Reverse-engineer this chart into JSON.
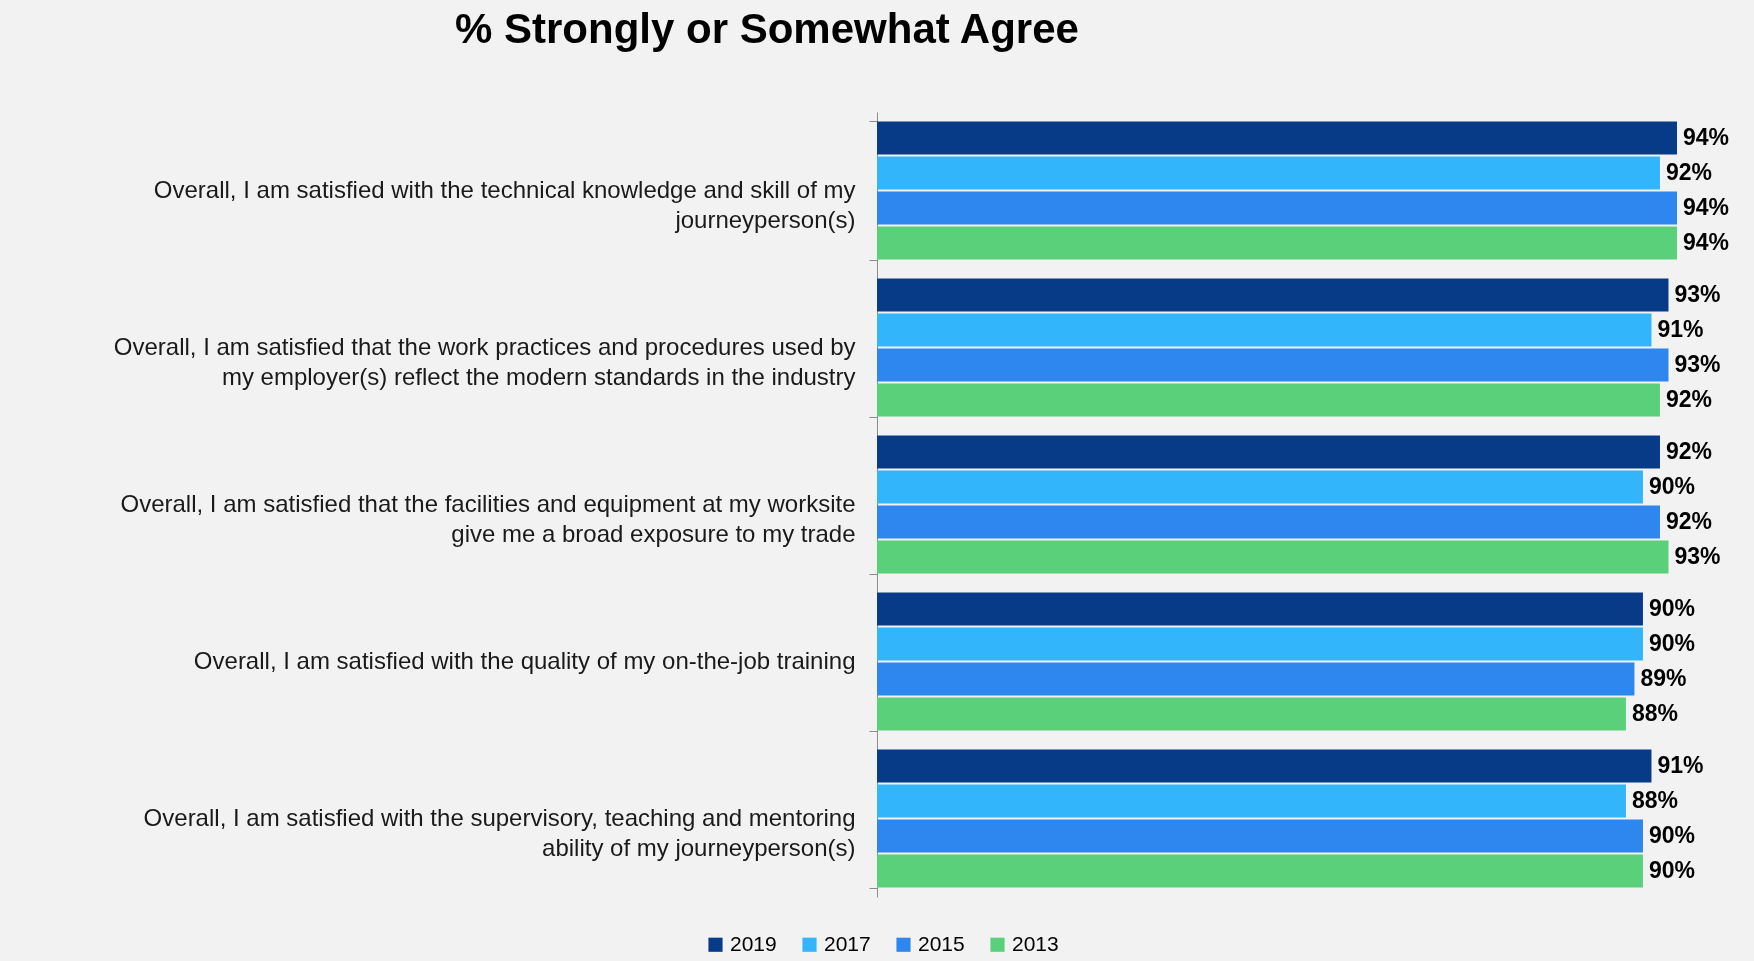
{
  "chart_data": {
    "type": "bar",
    "orientation": "horizontal",
    "title": "% Strongly or Somewhat Agree",
    "categories": [
      "Overall, I am satisfied with the technical knowledge and skill of my journeyperson(s)",
      "Overall, I am satisfied that the work practices and procedures used by my employer(s) reflect the modern standards in the industry",
      "Overall, I am satisfied that the facilities and equipment at my worksite give me a broad exposure to my trade",
      "Overall, I am satisfied with the quality of my on-the-job training",
      "Overall, I am satisfied with the supervisory, teaching and mentoring ability of my journeyperson(s)"
    ],
    "series": [
      {
        "name": "2019",
        "color": "#073b87",
        "values": [
          94,
          93,
          92,
          90,
          91
        ],
        "value_labels": [
          "94%",
          "93%",
          "92%",
          "90%",
          "91%"
        ]
      },
      {
        "name": "2017",
        "color": "#33b5fc",
        "values": [
          92,
          91,
          90,
          90,
          88
        ],
        "value_labels": [
          "92%",
          "91%",
          "90%",
          "90%",
          "88%"
        ]
      },
      {
        "name": "2015",
        "color": "#2e86ef",
        "values": [
          94,
          93,
          92,
          89,
          90
        ],
        "value_labels": [
          "94%",
          "93%",
          "92%",
          "89%",
          "90%"
        ]
      },
      {
        "name": "2013",
        "color": "#5ad07a",
        "values": [
          94,
          92,
          93,
          88,
          90
        ],
        "value_labels": [
          "94%",
          "92%",
          "93%",
          "88%",
          "90%"
        ]
      }
    ],
    "legend": "bottom",
    "grid": false
  }
}
